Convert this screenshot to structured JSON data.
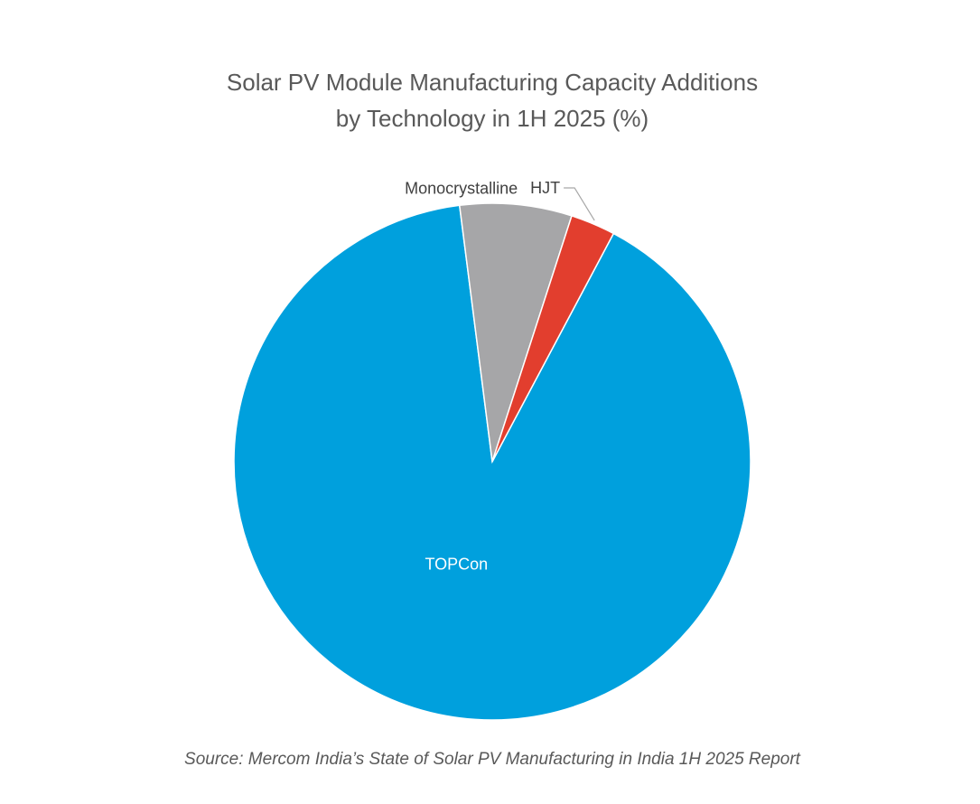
{
  "chart_data": {
    "type": "pie",
    "title": "Solar PV Module Manufacturing Capacity Additions",
    "subtitle": "by Technology in 1H 2025 (%)",
    "slices": [
      {
        "label": "TOPCon",
        "value": 90.2,
        "color": "#00a0dd"
      },
      {
        "label": "Monocrystalline",
        "value": 7.0,
        "color": "#a6a6a8"
      },
      {
        "label": "HJT",
        "value": 2.8,
        "color": "#e23e2e"
      }
    ],
    "source": "Source: Mercom India’s State of Solar PV Manufacturing in India 1H 2025 Report"
  }
}
